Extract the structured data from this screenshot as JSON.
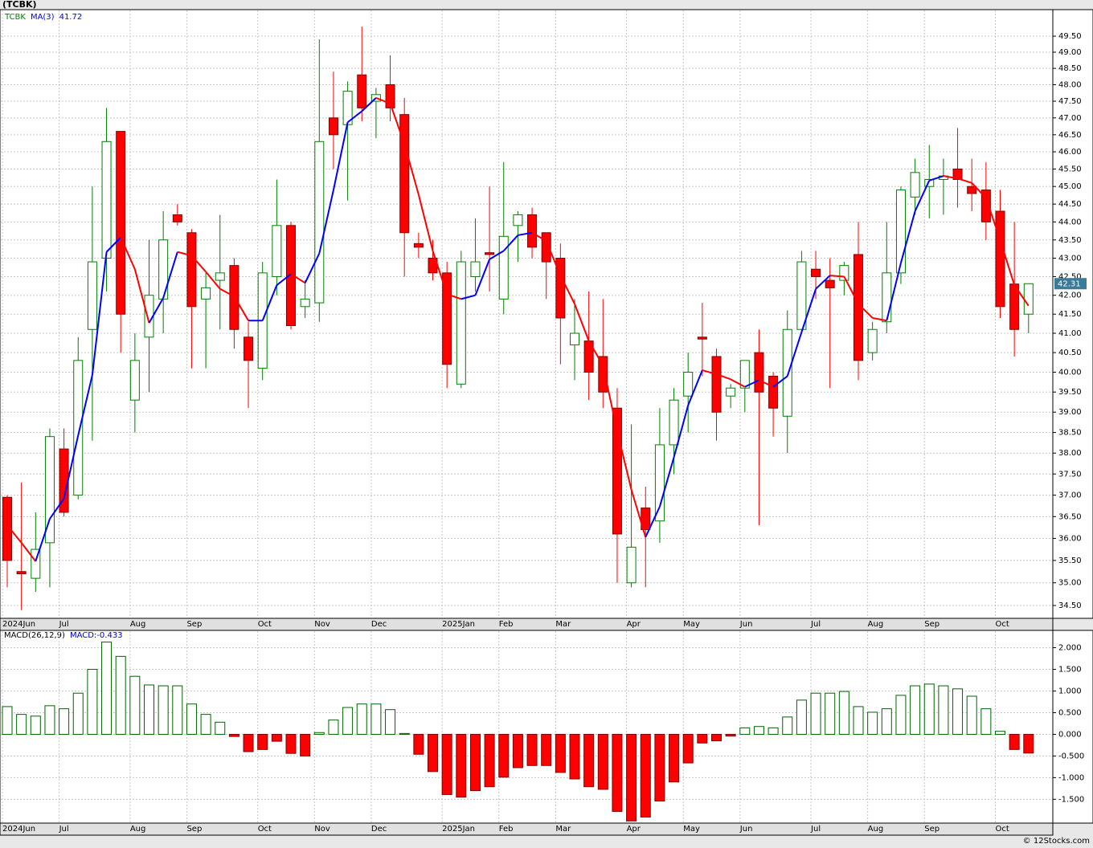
{
  "chart_data": [
    {
      "type": "candlestick",
      "title": "(TCBK)",
      "name": "TCBK",
      "categories": [
        "2024Jun",
        null,
        null,
        null,
        "Jul",
        null,
        null,
        null,
        null,
        "Aug",
        null,
        null,
        null,
        "Sep",
        null,
        null,
        null,
        null,
        "Oct",
        null,
        null,
        null,
        "Nov",
        null,
        null,
        null,
        "Dec",
        null,
        null,
        null,
        null,
        "2025Jan",
        null,
        null,
        null,
        "Feb",
        null,
        null,
        null,
        "Mar",
        null,
        null,
        null,
        null,
        "Apr",
        null,
        null,
        null,
        "May",
        null,
        null,
        null,
        "Jun",
        null,
        null,
        null,
        null,
        "Jul",
        null,
        null,
        null,
        "Aug",
        null,
        null,
        null,
        "Sep",
        null,
        null,
        null,
        null,
        "Oct",
        null,
        null
      ],
      "open": [
        36.95,
        35.25,
        35.1,
        35.9,
        38.1,
        37.0,
        41.1,
        43.0,
        46.6,
        39.3,
        40.9,
        41.9,
        44.2,
        43.7,
        41.9,
        42.4,
        42.8,
        40.9,
        40.1,
        42.5,
        43.9,
        41.7,
        41.8,
        47.0,
        46.8,
        48.3,
        47.5,
        48.0,
        47.1,
        43.4,
        43.0,
        42.6,
        39.7,
        42.5,
        43.15,
        41.9,
        43.9,
        44.2,
        43.7,
        43.0,
        40.7,
        40.8,
        40.4,
        39.1,
        35.0,
        36.7,
        36.4,
        38.2,
        39.4,
        40.9,
        40.4,
        39.4,
        39.6,
        40.5,
        39.9,
        38.9,
        41.1,
        42.7,
        42.4,
        42.4,
        43.1,
        40.5,
        41.3,
        42.6,
        44.7,
        45.0,
        45.2,
        45.5,
        45.0,
        44.9,
        44.3,
        42.3,
        41.5
      ],
      "high": [
        37.0,
        37.3,
        36.6,
        38.6,
        38.6,
        40.9,
        45.0,
        47.3,
        46.6,
        41.0,
        43.5,
        44.3,
        44.5,
        43.8,
        42.6,
        44.2,
        43.0,
        41.3,
        42.9,
        45.2,
        44.0,
        42.4,
        49.4,
        48.4,
        48.1,
        49.8,
        47.9,
        48.9,
        47.6,
        43.7,
        43.5,
        42.9,
        43.2,
        44.1,
        45.0,
        45.7,
        44.3,
        44.4,
        43.7,
        43.4,
        41.9,
        42.1,
        41.9,
        39.6,
        38.7,
        37.2,
        39.1,
        39.6,
        40.5,
        41.8,
        40.6,
        39.7,
        40.3,
        41.1,
        40.0,
        41.6,
        43.2,
        43.2,
        43.0,
        42.9,
        44.0,
        41.3,
        44.0,
        45.0,
        45.8,
        46.2,
        45.8,
        46.7,
        45.8,
        45.7,
        44.9,
        44.0,
        42.3
      ],
      "low": [
        34.9,
        34.4,
        34.8,
        34.9,
        36.5,
        36.9,
        38.3,
        42.1,
        40.5,
        38.5,
        39.5,
        41.0,
        43.9,
        40.1,
        40.1,
        41.1,
        40.6,
        39.1,
        39.8,
        42.0,
        41.1,
        41.4,
        41.3,
        45.5,
        44.6,
        46.9,
        46.4,
        46.9,
        42.5,
        43.0,
        42.4,
        39.6,
        39.6,
        42.1,
        42.1,
        41.5,
        42.9,
        43.0,
        41.9,
        40.2,
        39.8,
        39.3,
        39.1,
        35.0,
        34.9,
        34.9,
        35.9,
        37.5,
        38.5,
        39.9,
        38.3,
        39.1,
        39.0,
        36.3,
        38.4,
        38.0,
        41.0,
        41.9,
        39.6,
        42.0,
        39.8,
        40.3,
        41.0,
        42.3,
        44.2,
        44.1,
        44.2,
        44.4,
        44.3,
        43.5,
        41.4,
        40.4,
        41.0
      ],
      "close": [
        35.5,
        35.2,
        35.75,
        38.4,
        36.6,
        40.3,
        42.9,
        46.3,
        41.5,
        40.3,
        42.0,
        43.5,
        44.0,
        41.7,
        42.2,
        42.6,
        41.1,
        40.3,
        42.6,
        43.9,
        41.2,
        41.9,
        46.3,
        46.5,
        47.8,
        47.3,
        47.7,
        47.3,
        43.7,
        43.3,
        42.6,
        40.2,
        42.9,
        42.9,
        43.1,
        43.6,
        44.2,
        43.3,
        42.9,
        41.4,
        41.0,
        40.0,
        39.5,
        36.1,
        35.8,
        36.2,
        38.2,
        39.3,
        40.0,
        40.85,
        39.0,
        39.6,
        40.3,
        39.5,
        39.1,
        41.1,
        42.9,
        42.5,
        42.2,
        42.8,
        40.3,
        41.1,
        42.6,
        44.9,
        45.4,
        45.2,
        45.3,
        45.2,
        44.8,
        44.0,
        41.7,
        41.1,
        42.31
      ],
      "ma": {
        "name": "MA(3)",
        "values": [
          36.3,
          35.9,
          35.48,
          36.45,
          36.92,
          38.43,
          39.93,
          43.17,
          43.57,
          42.7,
          41.27,
          41.93,
          43.17,
          43.07,
          42.63,
          42.17,
          41.97,
          41.33,
          41.33,
          42.27,
          42.57,
          42.33,
          43.13,
          44.9,
          46.87,
          47.2,
          47.6,
          47.43,
          46.23,
          44.77,
          43.2,
          42.03,
          41.9,
          42.0,
          42.97,
          43.2,
          43.63,
          43.7,
          43.47,
          42.53,
          41.77,
          40.8,
          40.17,
          38.53,
          37.13,
          36.03,
          36.73,
          37.9,
          39.17,
          40.05,
          39.95,
          39.82,
          39.63,
          39.8,
          39.63,
          39.9,
          41.03,
          42.17,
          42.53,
          42.5,
          41.77,
          41.4,
          41.33,
          42.87,
          44.3,
          45.17,
          45.3,
          45.23,
          45.1,
          44.67,
          43.5,
          42.27,
          41.72
        ],
        "up_color": "#0000ff",
        "down_color": "#ff0000"
      },
      "up_color": "#008000",
      "down_color": "#ff0000",
      "name_color": "#008000",
      "log_scale": true,
      "grid": true,
      "ylim": [
        34.22,
        50.34
      ],
      "yticks": [
        {
          "value": 34.5,
          "label": "34.50"
        },
        {
          "value": 35,
          "label": "35.00"
        },
        {
          "value": 35.5,
          "label": "35.50"
        },
        {
          "value": 36,
          "label": "36.00"
        },
        {
          "value": 36.5,
          "label": "36.50"
        },
        {
          "value": 37,
          "label": "37.00"
        },
        {
          "value": 37.5,
          "label": "37.50"
        },
        {
          "value": 38,
          "label": "38.00"
        },
        {
          "value": 38.5,
          "label": "38.50"
        },
        {
          "value": 39,
          "label": "39.00"
        },
        {
          "value": 39.5,
          "label": "39.50"
        },
        {
          "value": 40,
          "label": "40.00"
        },
        {
          "value": 40.5,
          "label": "40.50"
        },
        {
          "value": 41,
          "label": "41.00"
        },
        {
          "value": 41.5,
          "label": "41.50"
        },
        {
          "value": 42,
          "label": "42.00"
        },
        {
          "value": 42.5,
          "label": "42.50"
        },
        {
          "value": 43,
          "label": "43.00"
        },
        {
          "value": 43.5,
          "label": "43.50"
        },
        {
          "value": 44,
          "label": "44.00"
        },
        {
          "value": 44.5,
          "label": "44.50"
        },
        {
          "value": 45,
          "label": "45.00"
        },
        {
          "value": 45.5,
          "label": "45.50"
        },
        {
          "value": 46,
          "label": "46.00"
        },
        {
          "value": 46.5,
          "label": "46.50"
        },
        {
          "value": 47,
          "label": "47.00"
        },
        {
          "value": 47.5,
          "label": "47.50"
        },
        {
          "value": 48,
          "label": "48.00"
        },
        {
          "value": 48.5,
          "label": "48.50"
        },
        {
          "value": 49,
          "label": "49.00"
        },
        {
          "value": 49.5,
          "label": "49.50"
        }
      ]
    },
    {
      "type": "bar",
      "name": "MACD(26,12,9)",
      "value_prefix": "MACD:",
      "categories": [
        "2024Jun",
        null,
        null,
        null,
        "Jul",
        null,
        null,
        null,
        null,
        "Aug",
        null,
        null,
        null,
        "Sep",
        null,
        null,
        null,
        null,
        "Oct",
        null,
        null,
        null,
        "Nov",
        null,
        null,
        null,
        "Dec",
        null,
        null,
        null,
        null,
        "2025Jan",
        null,
        null,
        null,
        "Feb",
        null,
        null,
        null,
        "Mar",
        null,
        null,
        null,
        null,
        "Apr",
        null,
        null,
        null,
        "May",
        null,
        null,
        null,
        "Jun",
        null,
        null,
        null,
        null,
        "Jul",
        null,
        null,
        null,
        "Aug",
        null,
        null,
        null,
        "Sep",
        null,
        null,
        null,
        null,
        "Oct",
        null,
        null
      ],
      "values": [
        0.64,
        0.46,
        0.42,
        0.66,
        0.59,
        0.95,
        1.5,
        2.13,
        1.8,
        1.34,
        1.14,
        1.12,
        1.12,
        0.7,
        0.46,
        0.28,
        -0.05,
        -0.4,
        -0.35,
        -0.16,
        -0.44,
        -0.5,
        0.04,
        0.33,
        0.62,
        0.7,
        0.7,
        0.57,
        0.02,
        -0.46,
        -0.86,
        -1.39,
        -1.45,
        -1.3,
        -1.21,
        -0.99,
        -0.77,
        -0.72,
        -0.72,
        -0.88,
        -1.03,
        -1.21,
        -1.27,
        -1.78,
        -2.0,
        -1.91,
        -1.54,
        -1.1,
        -0.66,
        -0.2,
        -0.15,
        -0.04,
        0.15,
        0.18,
        0.15,
        0.4,
        0.79,
        0.95,
        0.95,
        0.99,
        0.64,
        0.51,
        0.59,
        0.9,
        1.12,
        1.16,
        1.12,
        1.05,
        0.88,
        0.59,
        0.07,
        -0.35,
        -0.433
      ],
      "pos_color": "#006400",
      "neg_color": "#ff0000",
      "value_color": "#0000cc",
      "grid": true,
      "ylim": [
        -2.05,
        2.4
      ],
      "yticks": [
        {
          "value": 2,
          "label": "2.000"
        },
        {
          "value": 1.5,
          "label": "1.500"
        },
        {
          "value": 1,
          "label": "1.000"
        },
        {
          "value": 0.5,
          "label": "0.500"
        },
        {
          "value": 0,
          "label": "0.000"
        },
        {
          "value": -0.5,
          "label": "-0.500"
        },
        {
          "value": -1,
          "label": "-1.000"
        },
        {
          "value": -1.5,
          "label": "-1.500"
        }
      ]
    }
  ],
  "footer": "© 12Stocks.com"
}
